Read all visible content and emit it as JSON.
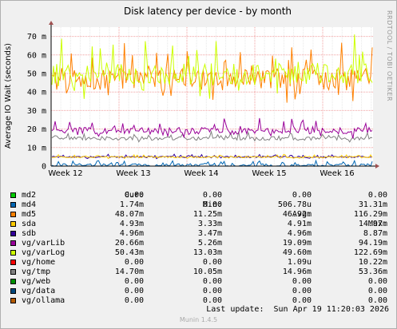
{
  "chart_data": {
    "type": "line",
    "title": "Disk latency per device - by month",
    "ylabel": "Average IO Wait (seconds)",
    "ylim": [
      0,
      0.075
    ],
    "y_ticks": [
      {
        "value": 0,
        "label": "0"
      },
      {
        "value": 0.01,
        "label": "10 m"
      },
      {
        "value": 0.02,
        "label": "20 m"
      },
      {
        "value": 0.03,
        "label": "30 m"
      },
      {
        "value": 0.04,
        "label": "40 m"
      },
      {
        "value": 0.05,
        "label": "50 m"
      },
      {
        "value": 0.06,
        "label": "60 m"
      },
      {
        "value": 0.07,
        "label": "70 m"
      }
    ],
    "x_ticks": [
      "Week 12",
      "Week 13",
      "Week 14",
      "Week 15",
      "Week 16"
    ],
    "grid": true,
    "legend_placement": "bottom",
    "series": [
      {
        "name": "md2",
        "color": "#00cc00",
        "cur": "0.00",
        "min": "0.00",
        "avg": "0.00",
        "max": "0.00",
        "level": 0.0,
        "spread": 0.0
      },
      {
        "name": "md4",
        "color": "#0066b3",
        "cur": "1.74m",
        "min": "0.00",
        "avg": "506.78u",
        "max": "31.31m",
        "level": 0.0005,
        "spread": 0.0008
      },
      {
        "name": "md5",
        "color": "#ff8000",
        "cur": "48.07m",
        "min": "11.25m",
        "avg": "46.92m",
        "max": "116.29m",
        "level": 0.04692,
        "spread": 0.006
      },
      {
        "name": "sda",
        "color": "#ffcc00",
        "cur": "4.93m",
        "min": "3.33m",
        "avg": "4.91m",
        "max": "14.97m",
        "level": 0.00491,
        "spread": 0.0004
      },
      {
        "name": "sdb",
        "color": "#330099",
        "cur": "4.96m",
        "min": "3.47m",
        "avg": "4.96m",
        "max": "8.87m",
        "level": 0.00496,
        "spread": 0.0004
      },
      {
        "name": "vg/varLib",
        "color": "#990099",
        "cur": "20.66m",
        "min": "5.26m",
        "avg": "19.09m",
        "max": "94.19m",
        "level": 0.01909,
        "spread": 0.0018
      },
      {
        "name": "vg/varLog",
        "color": "#ccff00",
        "cur": "50.43m",
        "min": "13.03m",
        "avg": "49.60m",
        "max": "122.69m",
        "level": 0.0496,
        "spread": 0.006
      },
      {
        "name": "vg/home",
        "color": "#ff0000",
        "cur": "0.00",
        "min": "0.00",
        "avg": "1.09u",
        "max": "10.22m",
        "level": 0.0,
        "spread": 0.0
      },
      {
        "name": "vg/tmp",
        "color": "#808080",
        "cur": "14.70m",
        "min": "10.05m",
        "avg": "14.96m",
        "max": "53.36m",
        "level": 0.01496,
        "spread": 0.001
      },
      {
        "name": "vg/web",
        "color": "#008f00",
        "cur": "0.00",
        "min": "0.00",
        "avg": "0.00",
        "max": "0.00",
        "level": 0.0,
        "spread": 0.0
      },
      {
        "name": "vg/data",
        "color": "#00487d",
        "cur": "0.00",
        "min": "0.00",
        "avg": "0.00",
        "max": "0.00",
        "level": 0.0,
        "spread": 0.0
      },
      {
        "name": "vg/ollama",
        "color": "#b35a00",
        "cur": "0.00",
        "min": "0.00",
        "avg": "0.00",
        "max": "0.00",
        "level": 0.0,
        "spread": 0.0
      }
    ]
  },
  "legend_header": {
    "cur": "Cur:",
    "min": "Min:",
    "avg": "Avg:",
    "max": "Max:"
  },
  "last_update": "Last update:  Sun Apr 19 11:20:03 2026",
  "side_label": "RRDTOOL / TOBI OETIKER",
  "footer": "Munin 1.4.5"
}
